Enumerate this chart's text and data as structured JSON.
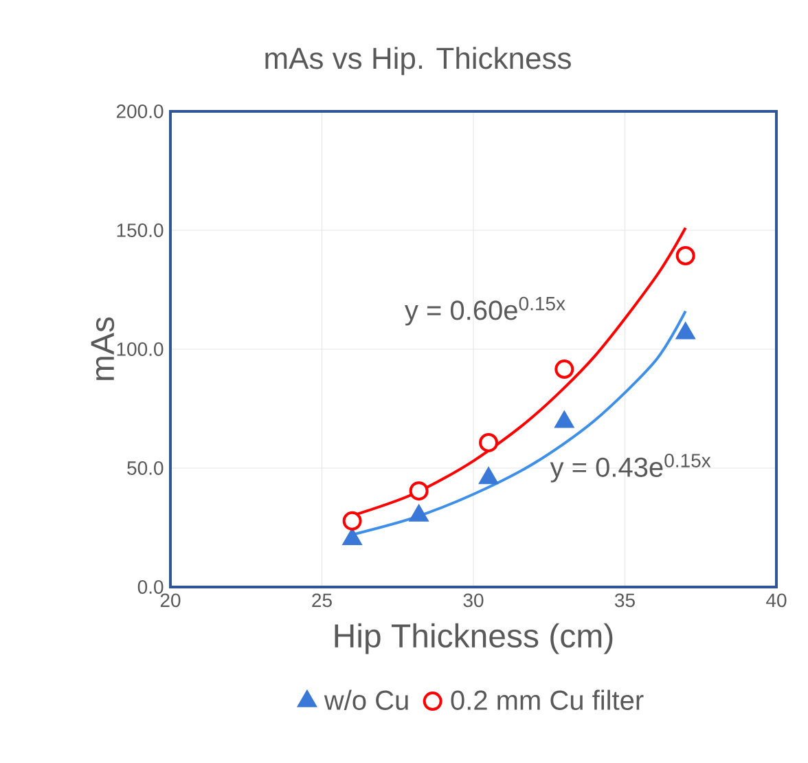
{
  "chart_data": {
    "type": "scatter",
    "title": "mAs vs Hip. Thickness",
    "xlabel": "Hip Thickness (cm)",
    "ylabel": "mAs",
    "xlim": [
      20,
      40
    ],
    "xticks": [
      20,
      25,
      30,
      35,
      40
    ],
    "ylim": [
      0,
      200
    ],
    "yticks": [
      {
        "value": 0,
        "label": "0.0"
      },
      {
        "value": 50,
        "label": "50.0"
      },
      {
        "value": 100,
        "label": "100.0"
      },
      {
        "value": 150,
        "label": "150.0"
      },
      {
        "value": 200,
        "label": "200.0"
      }
    ],
    "grid": true,
    "legend": "bottom",
    "series": [
      {
        "name": "w/o Cu",
        "marker": "triangle",
        "color": "#3a78d8",
        "x": [
          26.0,
          28.2,
          30.5,
          33.0,
          37.0
        ],
        "values": [
          20.1,
          30.0,
          45.8,
          69.4,
          106.7
        ]
      },
      {
        "name": "0.2 mm Cu filter",
        "marker": "circle",
        "color": "#ff0000",
        "x": [
          26.0,
          28.2,
          30.5,
          33.0,
          37.0
        ],
        "values": [
          27.8,
          40.4,
          60.7,
          91.6,
          139.3
        ]
      },
      {
        "type": "line",
        "marker": "none",
        "color": "#3d8fe8",
        "x": [
          26,
          28,
          30,
          32,
          34,
          36,
          37
        ],
        "values": [
          22,
          29,
          39,
          52,
          70,
          95,
          116
        ]
      },
      {
        "type": "line",
        "marker": "none",
        "color": "#ff0000",
        "x": [
          26,
          28,
          30,
          32,
          34,
          36,
          37
        ],
        "values": [
          30,
          39,
          53,
          72,
          97,
          130,
          151
        ]
      }
    ],
    "annotations": [
      "y = 0.60e$^{0.15x}$",
      "y = 0.43e$^{0.15x}$"
    ]
  }
}
